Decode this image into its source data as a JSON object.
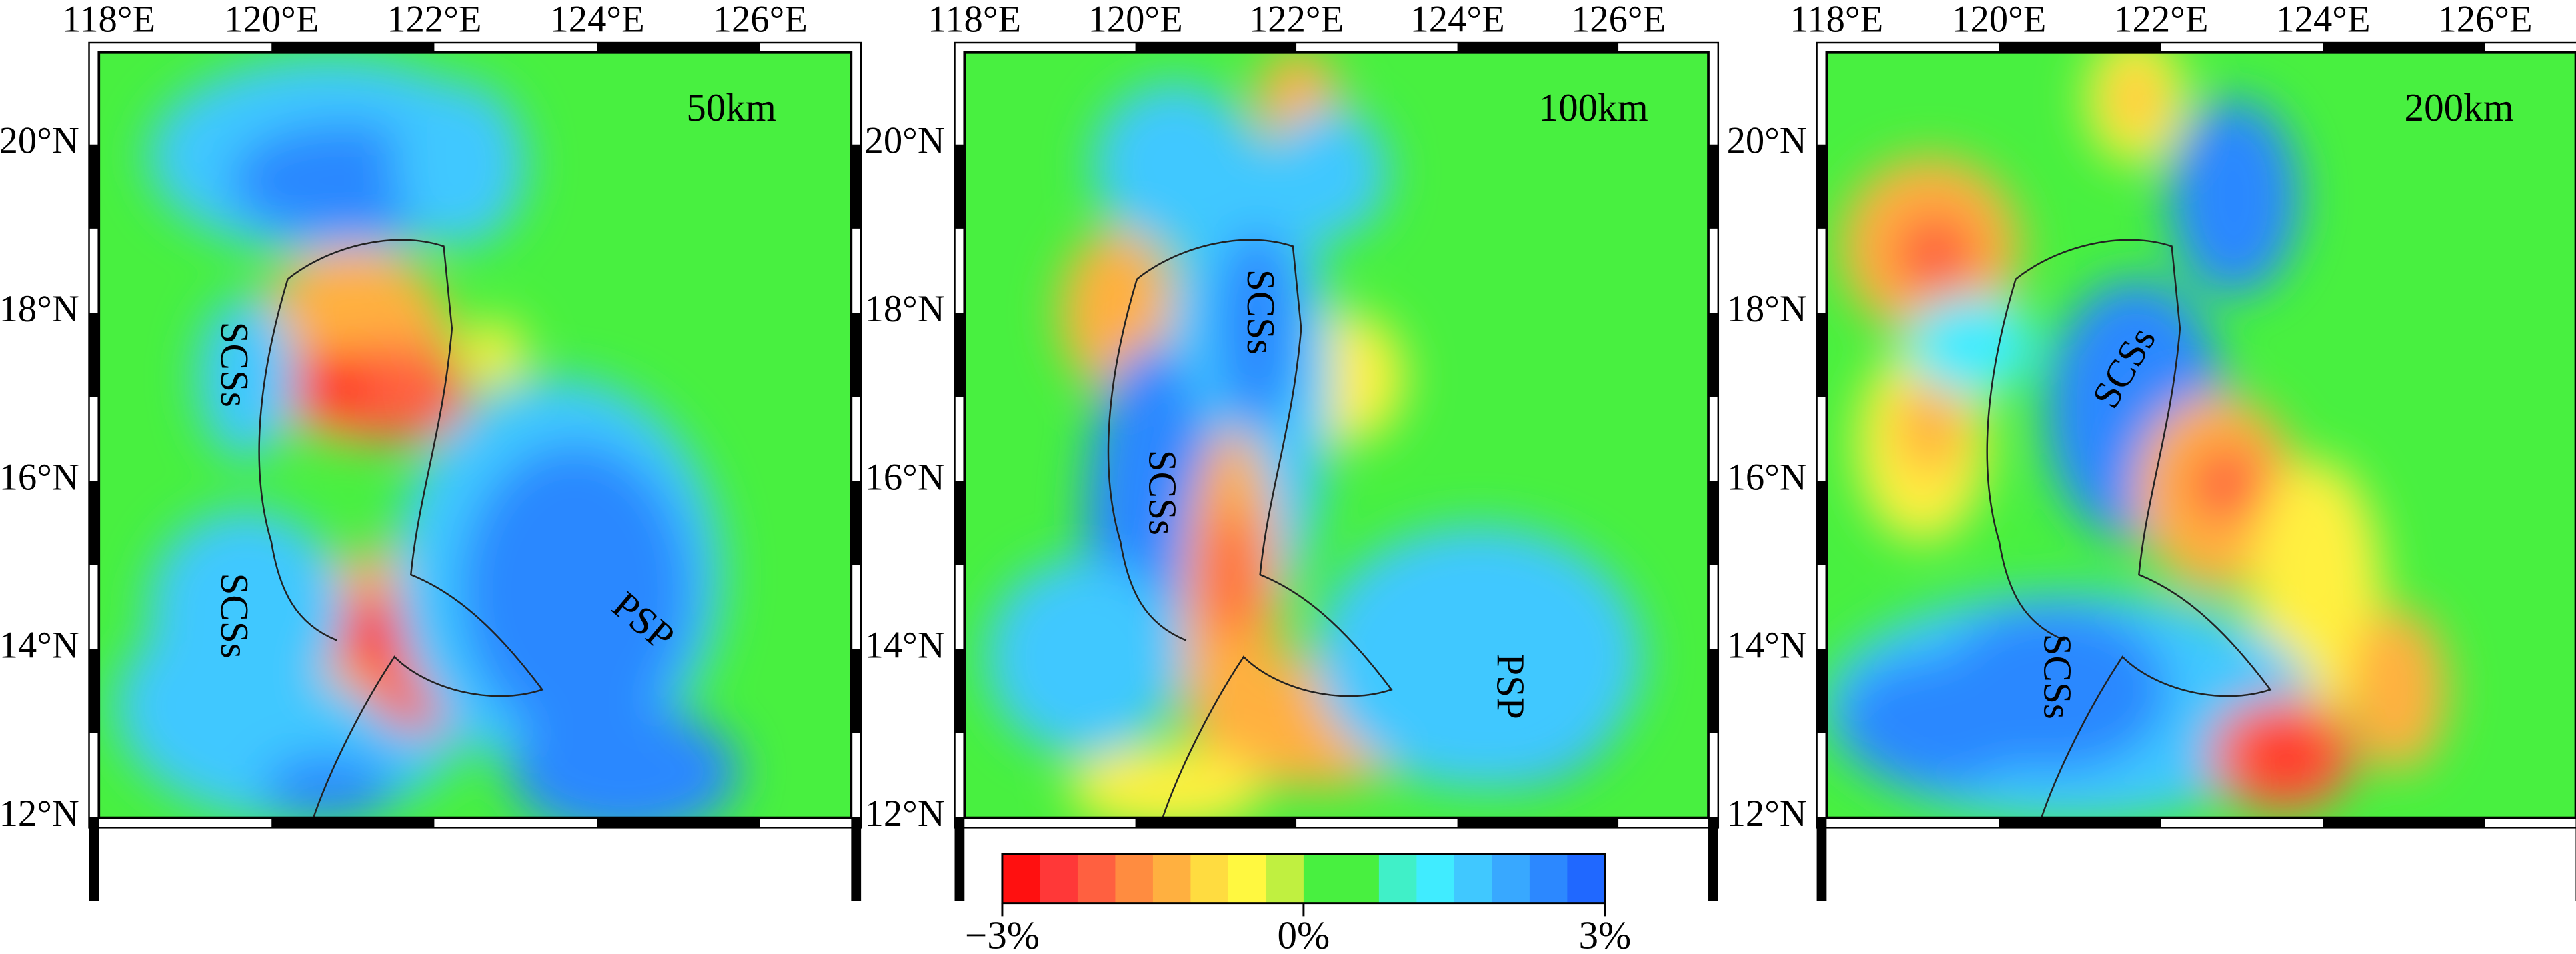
{
  "panels": [
    {
      "depth": "50km",
      "lon_labels": [
        "118°E",
        "120°E",
        "122°E",
        "124°E",
        "126°E"
      ],
      "lat_labels": [
        "20°N",
        "18°N",
        "16°N",
        "14°N",
        "12°N"
      ],
      "regions": [
        "SCSs",
        "SCSs",
        "PSP"
      ]
    },
    {
      "depth": "100km",
      "lon_labels": [
        "118°E",
        "120°E",
        "122°E",
        "124°E",
        "126°E"
      ],
      "lat_labels": [
        "20°N",
        "18°N",
        "16°N",
        "14°N",
        "12°N"
      ],
      "regions": [
        "SCSs",
        "SCSs",
        "PSP"
      ]
    },
    {
      "depth": "200km",
      "lon_labels": [
        "118°E",
        "120°E",
        "122°E",
        "124°E",
        "126°E"
      ],
      "lat_labels": [
        "20°N",
        "18°N",
        "16°N",
        "14°N",
        "12°N"
      ],
      "regions": [
        "SCSs",
        "SCSs"
      ]
    }
  ],
  "colorbar": {
    "labels": [
      "−3%",
      "0%",
      "3%"
    ],
    "colors": [
      "#ff1010",
      "#ff3838",
      "#ff6040",
      "#ff8c40",
      "#ffb040",
      "#ffdc40",
      "#fff840",
      "#c0f040",
      "#48f040",
      "#48f040",
      "#40f0c8",
      "#40ecff",
      "#40c8ff",
      "#38a8ff",
      "#2c88ff",
      "#2068ff"
    ]
  }
}
